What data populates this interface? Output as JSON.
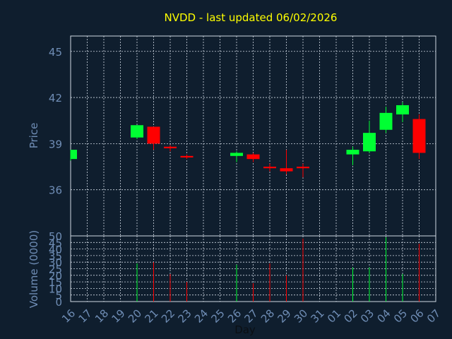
{
  "chart_data": {
    "type": "candlestick",
    "title": "NVDD - last updated 06/02/2026",
    "xlabel": "Day",
    "price_ylabel": "Price",
    "volume_ylabel": "Volume (0000)",
    "price_ylim": [
      33.0,
      46.0
    ],
    "price_yticks": [
      36,
      39,
      42,
      45
    ],
    "volume_ylim": [
      0,
      50
    ],
    "volume_yticks": [
      0,
      5,
      10,
      15,
      20,
      25,
      30,
      35,
      40,
      45,
      50
    ],
    "grid": true,
    "up_color": "#00ff33",
    "down_color": "#ff0000",
    "x_ticks": [
      "16",
      "17",
      "18",
      "19",
      "20",
      "21",
      "22",
      "23",
      "24",
      "25",
      "26",
      "27",
      "28",
      "29",
      "30",
      "31",
      "01",
      "02",
      "03",
      "04",
      "05",
      "06",
      "07"
    ],
    "candles": [
      {
        "day": "16",
        "open": 38.0,
        "high": 38.6,
        "low": 37.9,
        "close": 38.6,
        "volume": 0
      },
      {
        "day": "20",
        "open": 39.4,
        "high": 40.2,
        "low": 39.3,
        "close": 40.2,
        "volume": 29
      },
      {
        "day": "21",
        "open": 40.1,
        "high": 40.1,
        "low": 38.6,
        "close": 39.0,
        "volume": 30
      },
      {
        "day": "22",
        "open": 38.8,
        "high": 38.9,
        "low": 38.5,
        "close": 38.7,
        "volume": 21
      },
      {
        "day": "23",
        "open": 38.2,
        "high": 38.3,
        "low": 38.0,
        "close": 38.1,
        "volume": 15
      },
      {
        "day": "26",
        "open": 38.2,
        "high": 38.5,
        "low": 37.8,
        "close": 38.4,
        "volume": 28
      },
      {
        "day": "27",
        "open": 38.3,
        "high": 38.4,
        "low": 37.8,
        "close": 38.0,
        "volume": 14
      },
      {
        "day": "28",
        "open": 37.5,
        "high": 37.7,
        "low": 37.2,
        "close": 37.4,
        "volume": 29
      },
      {
        "day": "29",
        "open": 37.4,
        "high": 38.6,
        "low": 37.0,
        "close": 37.2,
        "volume": 20
      },
      {
        "day": "30",
        "open": 37.5,
        "high": 37.7,
        "low": 36.8,
        "close": 37.4,
        "volume": 48
      },
      {
        "day": "02",
        "open": 38.3,
        "high": 38.8,
        "low": 37.6,
        "close": 38.6,
        "volume": 26
      },
      {
        "day": "03",
        "open": 38.5,
        "high": 40.5,
        "low": 38.4,
        "close": 39.7,
        "volume": 26
      },
      {
        "day": "04",
        "open": 39.9,
        "high": 41.4,
        "low": 39.7,
        "close": 41.0,
        "volume": 49
      },
      {
        "day": "05",
        "open": 40.9,
        "high": 41.7,
        "low": 40.4,
        "close": 41.5,
        "volume": 21
      },
      {
        "day": "06",
        "open": 40.6,
        "high": 40.9,
        "low": 38.0,
        "close": 38.4,
        "volume": 44
      }
    ]
  }
}
